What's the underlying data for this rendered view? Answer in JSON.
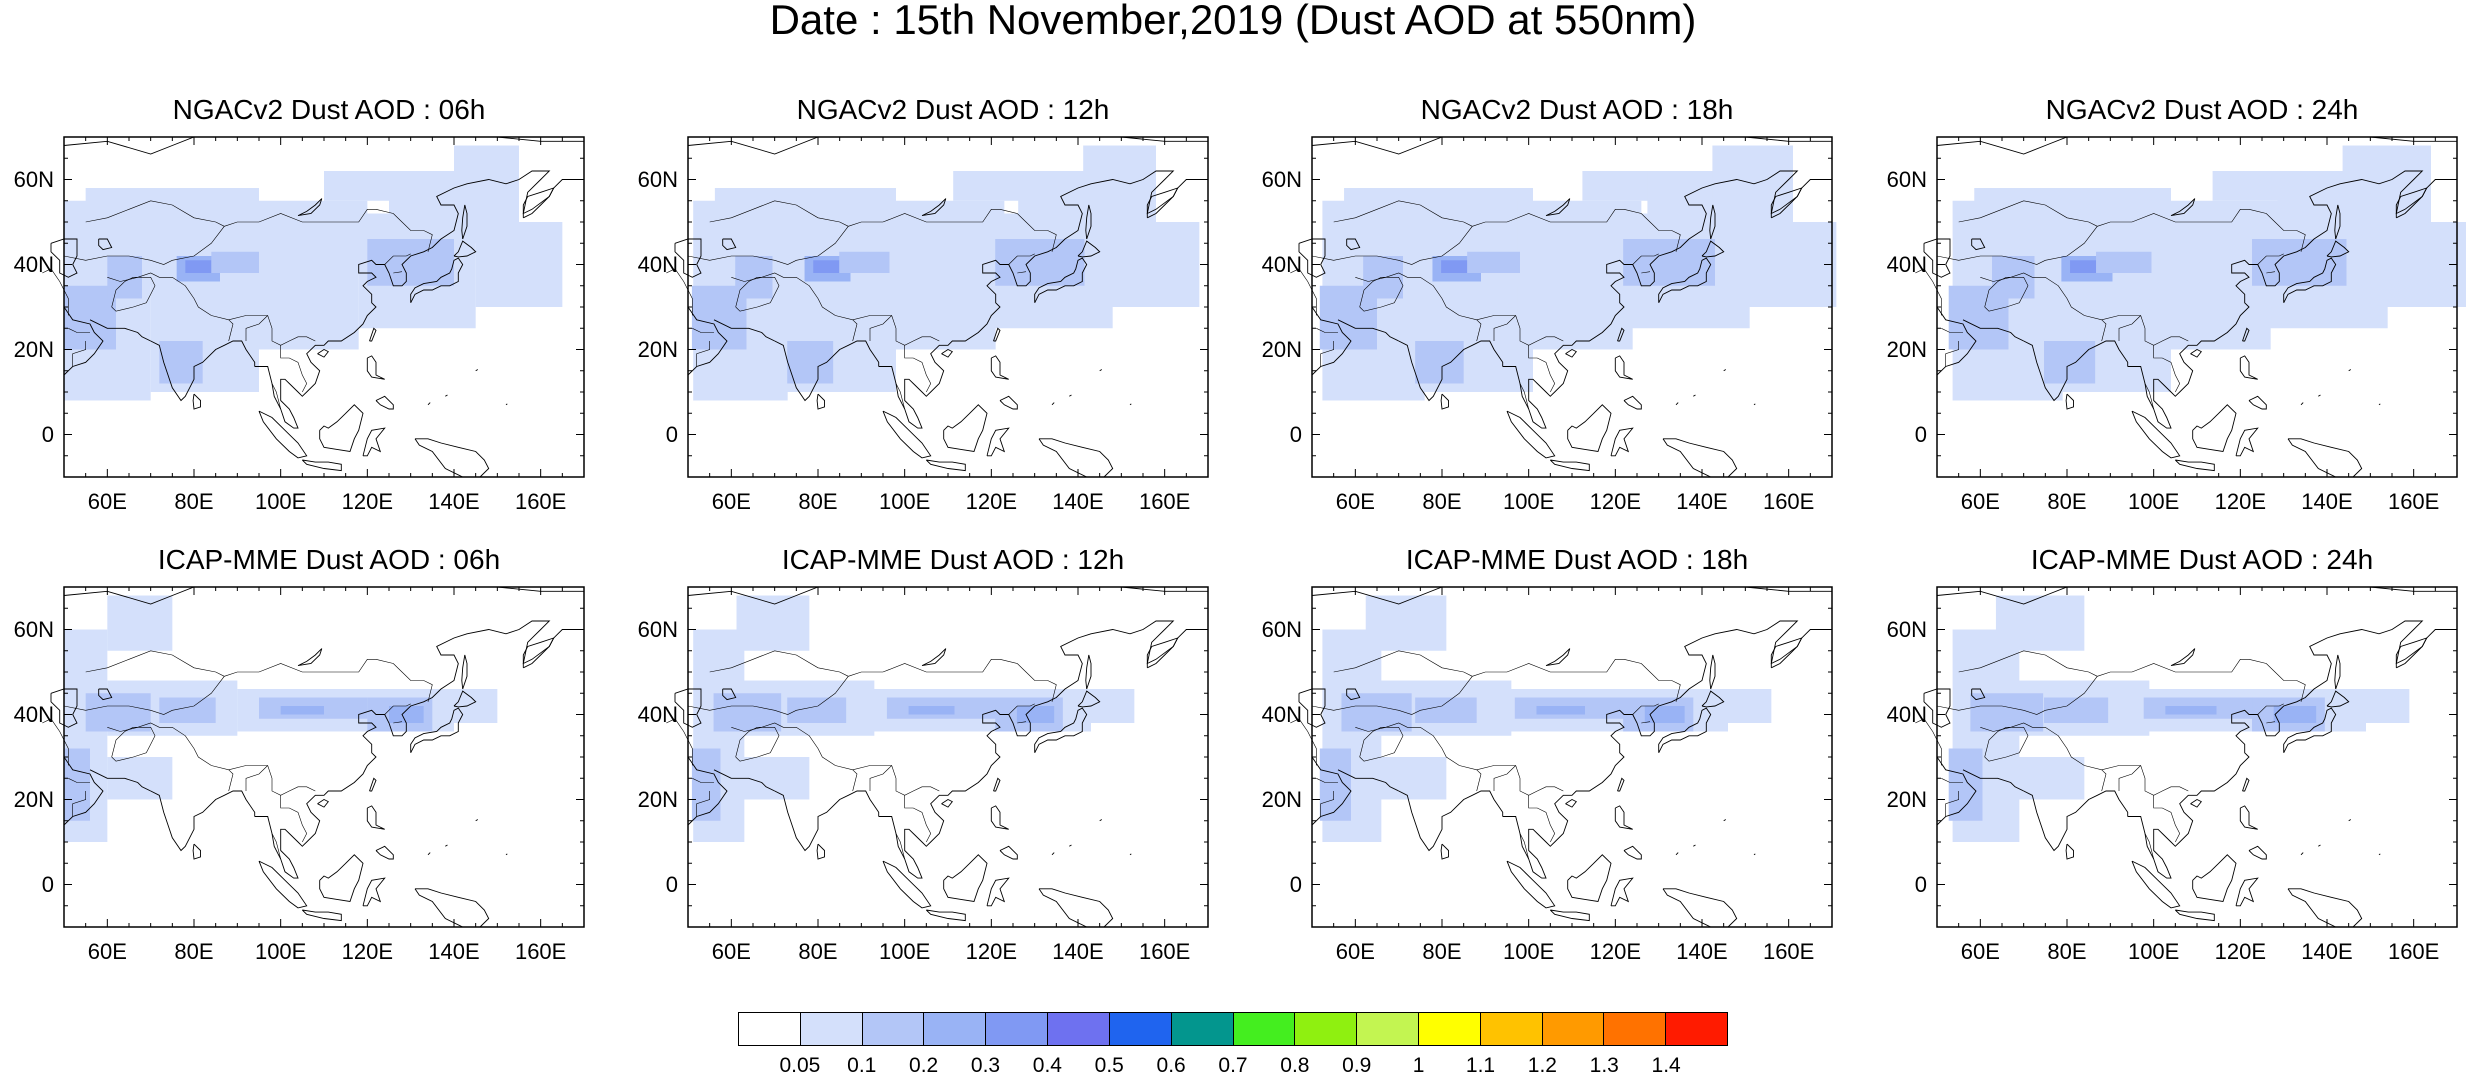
{
  "title": "Date : 15th November,2019 (Dust AOD at 550nm)",
  "lat_labels": [
    "60N",
    "40N",
    "20N",
    "0"
  ],
  "lon_labels": [
    "60E",
    "80E",
    "100E",
    "120E",
    "140E",
    "160E"
  ],
  "panels": [
    {
      "title": "NGACv2 Dust AOD : 06h",
      "model": "NGACv2",
      "hour": "06h"
    },
    {
      "title": "NGACv2 Dust AOD : 12h",
      "model": "NGACv2",
      "hour": "12h"
    },
    {
      "title": "NGACv2 Dust AOD : 18h",
      "model": "NGACv2",
      "hour": "18h"
    },
    {
      "title": "NGACv2 Dust AOD : 24h",
      "model": "NGACv2",
      "hour": "24h"
    },
    {
      "title": "ICAP-MME Dust AOD : 06h",
      "model": "ICAP-MME",
      "hour": "06h"
    },
    {
      "title": "ICAP-MME Dust AOD : 12h",
      "model": "ICAP-MME",
      "hour": "12h"
    },
    {
      "title": "ICAP-MME Dust AOD : 18h",
      "model": "ICAP-MME",
      "hour": "18h"
    },
    {
      "title": "ICAP-MME Dust AOD : 24h",
      "model": "ICAP-MME",
      "hour": "24h"
    }
  ],
  "colorbar": {
    "labels": [
      "0.05",
      "0.1",
      "0.2",
      "0.3",
      "0.4",
      "0.5",
      "0.6",
      "0.7",
      "0.8",
      "0.9",
      "1",
      "1.1",
      "1.2",
      "1.3",
      "1.4"
    ],
    "colors": [
      "#ffffff",
      "#d4e0fb",
      "#b3c6f7",
      "#99b3f5",
      "#8099f3",
      "#6e71f0",
      "#1f64ef",
      "#03968e",
      "#44ee1f",
      "#8ff010",
      "#c3f551",
      "#ffff00",
      "#ffc200",
      "#ff9a00",
      "#ff7200",
      "#ff1b00"
    ]
  },
  "map_extent": {
    "lon": [
      50,
      170
    ],
    "lat": [
      -10,
      70
    ]
  }
}
